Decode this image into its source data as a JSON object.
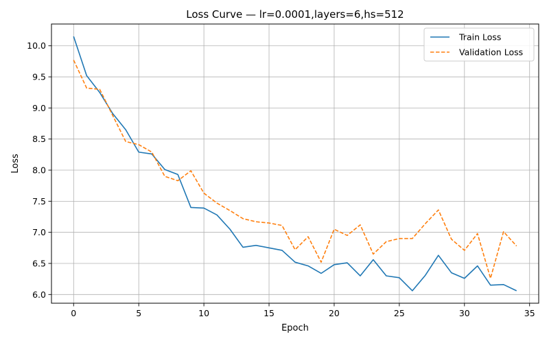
{
  "chart_data": {
    "type": "line",
    "title": "Loss Curve — lr=0.0001,layers=6,hs=512",
    "xlabel": "Epoch",
    "ylabel": "Loss",
    "xlim": [
      -1.7,
      35.7
    ],
    "ylim": [
      5.86,
      10.35
    ],
    "xticks": [
      0,
      5,
      10,
      15,
      20,
      25,
      30,
      35
    ],
    "yticks": [
      6.0,
      6.5,
      7.0,
      7.5,
      8.0,
      8.5,
      9.0,
      9.5,
      10.0
    ],
    "ytick_labels": [
      "6.0",
      "6.5",
      "7.0",
      "7.5",
      "8.0",
      "8.5",
      "9.0",
      "9.5",
      "10.0"
    ],
    "grid": true,
    "legend_position": "top-right",
    "x": [
      0,
      1,
      2,
      3,
      4,
      5,
      6,
      7,
      8,
      9,
      10,
      11,
      12,
      13,
      14,
      15,
      16,
      17,
      18,
      19,
      20,
      21,
      22,
      23,
      24,
      25,
      26,
      27,
      28,
      29,
      30,
      31,
      32,
      33,
      34
    ],
    "series": [
      {
        "name": "Train Loss",
        "color": "#1f77b4",
        "style": "solid",
        "values": [
          10.15,
          9.52,
          9.25,
          8.91,
          8.65,
          8.29,
          8.26,
          8.01,
          7.93,
          7.4,
          7.39,
          7.28,
          7.05,
          6.76,
          6.79,
          6.75,
          6.71,
          6.52,
          6.46,
          6.34,
          6.48,
          6.51,
          6.3,
          6.56,
          6.3,
          6.27,
          6.06,
          6.31,
          6.63,
          6.35,
          6.26,
          6.46,
          6.15,
          6.16,
          6.06
        ]
      },
      {
        "name": "Validation Loss",
        "color": "#ff7f0e",
        "style": "dashed",
        "values": [
          9.77,
          9.32,
          9.3,
          8.88,
          8.46,
          8.41,
          8.29,
          7.9,
          7.83,
          7.99,
          7.63,
          7.47,
          7.35,
          7.22,
          7.17,
          7.15,
          7.11,
          6.72,
          6.93,
          6.52,
          7.05,
          6.95,
          7.12,
          6.65,
          6.85,
          6.9,
          6.9,
          7.14,
          7.36,
          6.89,
          6.71,
          6.98,
          6.26,
          7.01,
          6.78
        ]
      }
    ]
  }
}
